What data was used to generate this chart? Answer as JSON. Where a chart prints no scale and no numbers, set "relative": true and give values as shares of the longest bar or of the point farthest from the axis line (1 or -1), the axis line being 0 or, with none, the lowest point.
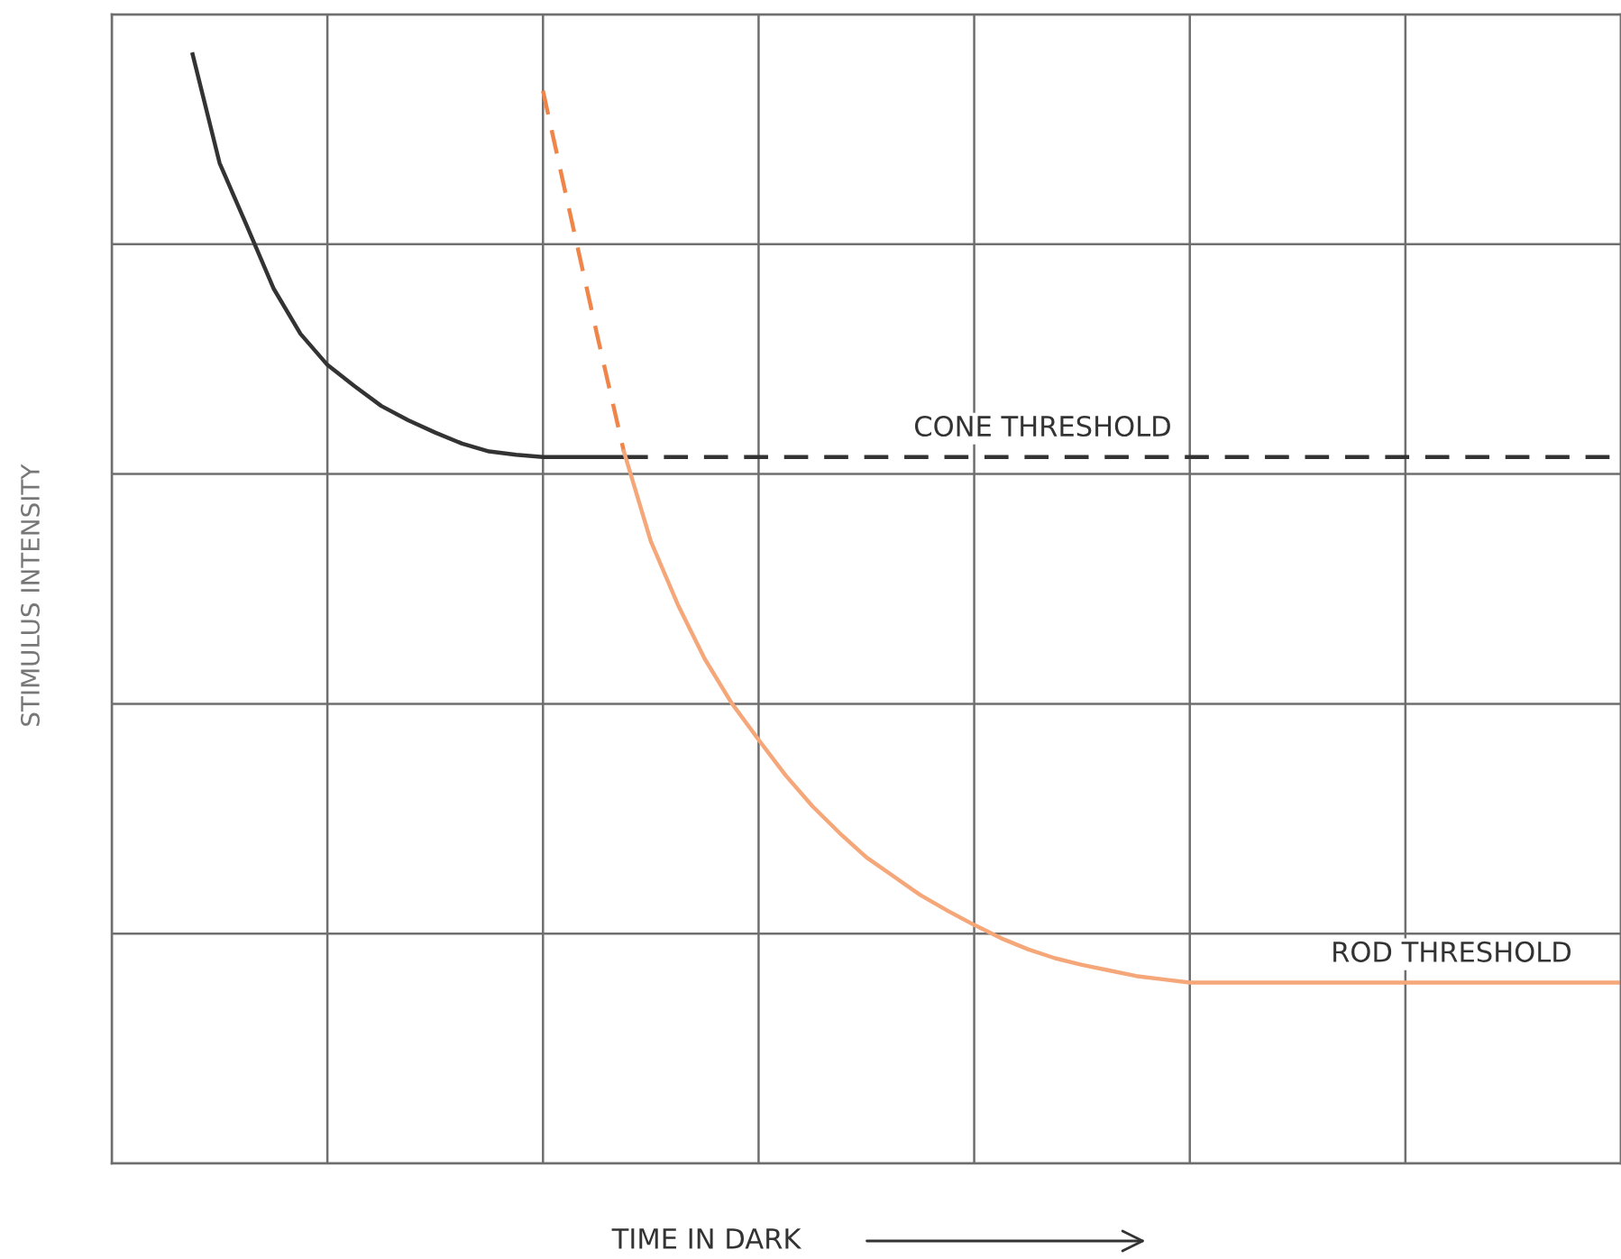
{
  "chart_data": {
    "type": "line",
    "relative": true,
    "xlabel": "TIME IN DARK",
    "ylabel": "STIMULUS INTENSITY",
    "grid": true,
    "tick_labels": false,
    "categories": [
      null,
      null,
      null,
      null,
      null,
      null,
      null,
      null,
      null,
      null,
      null,
      null,
      null,
      null,
      null,
      null,
      null,
      null,
      null,
      null,
      null,
      null,
      null,
      null,
      null,
      null,
      null,
      null,
      null,
      null,
      null,
      null,
      null,
      null,
      null,
      null,
      null,
      null,
      null,
      null,
      null,
      null,
      null,
      null,
      null,
      null,
      null,
      null,
      null,
      null,
      null,
      null,
      null,
      null,
      null,
      null,
      null
    ],
    "series": [
      {
        "color": "#333333",
        "line_style": "solid",
        "values": [
          null,
          null,
          null,
          1.0,
          0.902,
          0.846,
          0.789,
          0.748,
          0.72,
          0.701,
          0.683,
          0.67,
          0.659,
          0.649,
          0.642,
          0.639,
          0.637,
          0.637,
          0.637,
          0.637,
          null,
          null,
          null,
          null,
          null,
          null,
          null,
          null,
          null,
          null,
          null,
          null,
          null,
          null,
          null,
          null,
          null,
          null,
          null,
          null,
          null,
          null,
          null,
          null,
          null,
          null,
          null,
          null,
          null,
          null,
          null,
          null,
          null,
          null,
          null,
          null,
          null
        ]
      },
      {
        "name": "CONE THRESHOLD",
        "color": "#333333",
        "line_style": "dashed",
        "values": [
          null,
          null,
          null,
          null,
          null,
          null,
          null,
          null,
          null,
          null,
          null,
          null,
          null,
          null,
          null,
          null,
          null,
          null,
          null,
          0.637,
          0.637,
          0.637,
          0.637,
          0.637,
          0.637,
          0.637,
          0.637,
          0.637,
          0.637,
          0.637,
          0.637,
          0.637,
          0.637,
          0.637,
          0.637,
          0.637,
          0.637,
          0.637,
          0.637,
          0.637,
          0.637,
          0.637,
          0.637,
          0.637,
          0.637,
          0.637,
          0.637,
          0.637,
          0.637,
          0.637,
          0.637,
          0.637,
          0.637,
          0.637,
          0.637,
          0.637,
          0.637
        ]
      },
      {
        "color": "#f0854a",
        "line_style": "dashed",
        "values": [
          null,
          null,
          null,
          null,
          null,
          null,
          null,
          null,
          null,
          null,
          null,
          null,
          null,
          null,
          null,
          null,
          0.967,
          0.857,
          0.748,
          0.642,
          null,
          null,
          null,
          null,
          null,
          null,
          null,
          null,
          null,
          null,
          null,
          null,
          null,
          null,
          null,
          null,
          null,
          null,
          null,
          null,
          null,
          null,
          null,
          null,
          null,
          null,
          null,
          null,
          null,
          null,
          null,
          null,
          null,
          null,
          null,
          null,
          null
        ]
      },
      {
        "name": "ROD THRESHOLD",
        "color": "#f5a77a",
        "line_style": "solid",
        "values": [
          null,
          null,
          null,
          null,
          null,
          null,
          null,
          null,
          null,
          null,
          null,
          null,
          null,
          null,
          null,
          null,
          null,
          null,
          null,
          0.642,
          0.561,
          0.504,
          0.455,
          0.415,
          0.382,
          0.35,
          0.322,
          0.298,
          0.276,
          0.259,
          0.242,
          0.228,
          0.215,
          0.203,
          0.193,
          0.185,
          0.179,
          0.174,
          0.169,
          0.166,
          0.163,
          0.163,
          0.163,
          0.163,
          0.163,
          0.163,
          0.163,
          0.163,
          0.163,
          0.163,
          0.163,
          0.163,
          0.163,
          0.163,
          0.163,
          0.163,
          0.163
        ]
      }
    ]
  }
}
